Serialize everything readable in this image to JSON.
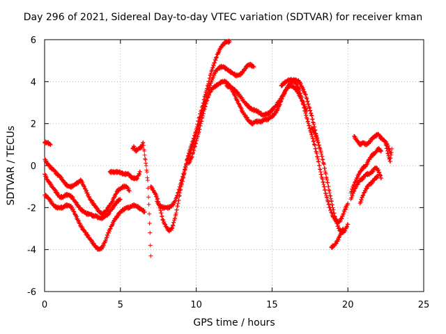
{
  "chart_data": {
    "type": "scatter",
    "title": "Day 296 of 2021, Sidereal Day-to-day VTEC variation (SDTVAR) for receiver kman",
    "xlabel": "GPS time / hours",
    "ylabel": "SDTVAR / TECUs",
    "xlim": [
      0,
      25
    ],
    "ylim": [
      -6,
      6
    ],
    "xticks": [
      0,
      5,
      10,
      15,
      20,
      25
    ],
    "yticks": [
      -6,
      -4,
      -2,
      0,
      2,
      4,
      6
    ],
    "grid": true,
    "marker": "+",
    "color": "#ff0000",
    "series": [
      {
        "x": [
          0.0,
          0.2,
          0.4,
          0.6,
          0.8,
          1.0,
          1.2,
          1.4,
          1.6,
          1.8,
          2.0,
          2.2,
          2.4,
          2.6,
          2.8,
          3.0,
          3.2,
          3.4,
          3.6,
          3.8,
          4.0,
          4.2,
          4.4,
          4.6,
          4.8,
          5.0,
          5.2,
          5.4,
          5.6,
          5.8,
          6.0,
          6.2,
          6.4,
          6.6
        ],
        "y": [
          -1.4,
          -1.5,
          -1.7,
          -1.9,
          -2.0,
          -2.0,
          -2.0,
          -1.9,
          -1.9,
          -2.0,
          -2.3,
          -2.6,
          -2.9,
          -3.1,
          -3.3,
          -3.5,
          -3.7,
          -3.9,
          -4.0,
          -3.9,
          -3.6,
          -3.2,
          -2.9,
          -2.6,
          -2.4,
          -2.2,
          -2.1,
          -2.0,
          -2.0,
          -1.9,
          -1.9,
          -2.0,
          -2.1,
          -2.2
        ]
      },
      {
        "x": [
          0.0,
          0.2,
          0.4,
          0.6,
          0.8,
          1.0,
          1.2,
          1.4,
          1.6,
          1.8,
          2.0,
          2.2,
          2.4,
          2.6,
          2.8,
          3.0,
          3.2,
          3.4,
          3.6,
          3.8,
          4.0,
          4.2,
          4.4,
          4.6,
          4.8,
          5.0
        ],
        "y": [
          -0.4,
          -0.7,
          -0.9,
          -1.1,
          -1.3,
          -1.5,
          -1.5,
          -1.4,
          -1.4,
          -1.5,
          -1.7,
          -1.9,
          -2.1,
          -2.2,
          -2.3,
          -2.3,
          -2.4,
          -2.4,
          -2.5,
          -2.5,
          -2.4,
          -2.3,
          -2.1,
          -1.9,
          -1.7,
          -1.6
        ]
      },
      {
        "x": [
          0.0,
          0.2,
          0.4,
          0.6,
          0.8,
          1.0,
          1.2,
          1.4,
          1.6,
          1.8,
          2.0,
          2.2,
          2.4,
          2.6,
          2.8,
          3.0,
          3.2,
          3.4,
          3.6,
          3.8,
          4.0,
          4.2,
          4.4,
          4.6,
          4.8,
          5.0,
          5.2,
          5.4,
          5.6
        ],
        "y": [
          0.3,
          0.1,
          -0.1,
          -0.2,
          -0.4,
          -0.5,
          -0.7,
          -0.9,
          -1.0,
          -1.0,
          -0.9,
          -0.8,
          -0.7,
          -1.0,
          -1.3,
          -1.6,
          -1.8,
          -2.0,
          -2.2,
          -2.3,
          -2.2,
          -2.0,
          -1.8,
          -1.5,
          -1.2,
          -1.1,
          -1.0,
          -1.0,
          -1.2
        ]
      },
      {
        "x": [
          0.0,
          0.1,
          0.2,
          0.3,
          0.4
        ],
        "y": [
          1.1,
          1.1,
          1.1,
          1.05,
          1.0
        ]
      },
      {
        "x": [
          4.3,
          4.6,
          4.9,
          5.2,
          5.5,
          5.8,
          6.1,
          6.3
        ],
        "y": [
          -0.3,
          -0.3,
          -0.3,
          -0.4,
          -0.4,
          -0.6,
          -0.6,
          -0.3
        ]
      },
      {
        "x": [
          5.8,
          5.9,
          6.0,
          6.2,
          6.4,
          6.5,
          6.6,
          6.7,
          6.8,
          6.85,
          6.9,
          6.95,
          7.0
        ],
        "y": [
          0.8,
          0.9,
          0.7,
          0.8,
          0.9,
          1.1,
          0.5,
          0.0,
          -0.7,
          -1.5,
          -2.3,
          -3.2,
          -4.3
        ]
      },
      {
        "x": [
          7.0,
          7.2,
          7.4,
          7.6,
          7.8,
          8.0,
          8.2,
          8.4,
          8.6,
          8.8,
          9.0,
          9.2,
          9.4,
          9.6,
          9.8,
          10.0,
          10.2,
          10.4,
          10.6,
          10.8,
          11.0,
          11.2,
          11.4,
          11.6,
          11.8,
          12.0,
          12.2
        ],
        "y": [
          -1.0,
          -1.2,
          -1.5,
          -2.0,
          -2.6,
          -2.9,
          -3.1,
          -3.0,
          -2.5,
          -1.8,
          -1.0,
          -0.4,
          0.3,
          0.8,
          1.2,
          1.7,
          2.3,
          2.8,
          3.4,
          3.9,
          4.5,
          4.9,
          5.3,
          5.6,
          5.8,
          5.9,
          5.9
        ]
      },
      {
        "x": [
          7.4,
          7.6,
          7.8,
          8.0,
          8.2,
          8.4,
          8.6,
          8.8,
          9.0,
          9.2,
          9.4,
          9.6,
          9.8,
          10.0,
          10.2,
          10.4,
          10.6,
          10.8,
          11.0,
          11.2,
          11.4,
          11.6,
          11.8,
          12.0,
          12.2,
          12.4,
          12.6,
          12.8,
          13.0,
          13.2,
          13.4,
          13.6,
          13.8
        ],
        "y": [
          -1.7,
          -1.9,
          -2.0,
          -2.0,
          -2.0,
          -1.9,
          -1.7,
          -1.3,
          -0.8,
          -0.3,
          0.2,
          0.6,
          1.0,
          1.5,
          2.0,
          2.6,
          3.1,
          3.6,
          4.0,
          4.4,
          4.6,
          4.7,
          4.7,
          4.6,
          4.5,
          4.4,
          4.3,
          4.3,
          4.4,
          4.6,
          4.8,
          4.8,
          4.7
        ]
      },
      {
        "x": [
          9.5,
          9.7,
          9.9,
          10.1,
          10.3,
          10.5,
          10.7,
          10.9,
          11.1,
          11.3,
          11.5,
          11.7,
          11.9,
          12.1,
          12.3,
          12.5,
          12.7,
          12.9,
          13.1,
          13.3,
          13.5,
          13.7,
          13.9,
          14.1,
          14.3,
          14.5,
          14.7,
          14.9,
          15.1,
          15.3,
          15.5,
          15.7,
          15.9,
          16.1,
          16.3,
          16.5,
          16.7,
          16.9,
          17.1,
          17.3
        ],
        "y": [
          0.1,
          0.4,
          0.9,
          1.4,
          2.0,
          2.6,
          3.1,
          3.5,
          3.7,
          3.8,
          3.9,
          4.0,
          4.0,
          3.9,
          3.7,
          3.4,
          3.1,
          2.8,
          2.5,
          2.3,
          2.1,
          2.0,
          2.1,
          2.1,
          2.1,
          2.2,
          2.2,
          2.3,
          2.4,
          2.6,
          2.9,
          3.3,
          3.6,
          3.8,
          3.8,
          3.7,
          3.5,
          3.2,
          2.9,
          2.6
        ]
      },
      {
        "x": [
          12.0,
          12.4,
          12.8,
          13.2,
          13.6,
          14.0,
          14.4,
          14.8,
          15.2,
          15.6,
          16.0,
          16.4,
          16.8,
          17.2,
          17.6,
          18.0
        ],
        "y": [
          3.8,
          3.7,
          3.4,
          3.0,
          2.7,
          2.6,
          2.4,
          2.5,
          2.8,
          3.2,
          3.7,
          4.1,
          4.0,
          3.4,
          2.4,
          1.2
        ]
      },
      {
        "x": [
          15.6,
          15.9,
          16.2,
          16.5,
          16.8,
          17.0,
          17.2,
          17.4,
          17.6,
          17.8,
          18.0,
          18.2,
          18.4,
          18.6,
          18.8,
          19.0,
          19.2,
          19.4,
          19.6,
          19.8,
          20.0
        ],
        "y": [
          3.8,
          4.0,
          4.1,
          4.0,
          3.6,
          3.1,
          2.5,
          2.0,
          1.5,
          1.0,
          0.4,
          -0.3,
          -0.9,
          -1.5,
          -2.0,
          -2.4,
          -2.6,
          -2.7,
          -2.5,
          -2.1,
          -1.8
        ]
      },
      {
        "x": [
          17.6,
          17.8,
          18.0,
          18.2,
          18.4,
          18.6,
          18.8,
          19.0,
          19.2,
          19.4,
          19.6,
          19.8,
          20.0
        ],
        "y": [
          1.8,
          1.6,
          1.2,
          0.7,
          0.1,
          -0.6,
          -1.3,
          -2.0,
          -2.6,
          -3.0,
          -3.2,
          -3.1,
          -2.8
        ]
      },
      {
        "x": [
          18.9,
          19.1,
          19.3,
          19.5,
          19.7
        ],
        "y": [
          -3.9,
          -3.8,
          -3.6,
          -3.3,
          -3.0
        ]
      },
      {
        "x": [
          20.4,
          20.6,
          20.8,
          21.0,
          21.2,
          21.4,
          21.6,
          21.8,
          22.0,
          22.2,
          22.4,
          22.6,
          22.8
        ],
        "y": [
          1.4,
          1.2,
          1.0,
          1.1,
          1.0,
          1.1,
          1.3,
          1.4,
          1.5,
          1.3,
          1.2,
          1.0,
          0.6
        ]
      },
      {
        "x": [
          20.2,
          20.4,
          20.6,
          20.8,
          21.0,
          21.2,
          21.4,
          21.6,
          21.8,
          22.0,
          22.2
        ],
        "y": [
          -1.3,
          -0.9,
          -0.6,
          -0.3,
          -0.1,
          0.0,
          0.3,
          0.5,
          0.6,
          0.8,
          0.7
        ]
      },
      {
        "x": [
          20.2,
          20.4,
          20.6,
          20.8,
          21.0,
          21.2,
          21.4,
          21.6,
          21.8,
          22.0,
          22.2
        ],
        "y": [
          -1.6,
          -1.2,
          -0.9,
          -0.7,
          -0.6,
          -0.4,
          -0.4,
          -0.3,
          -0.1,
          -0.2,
          -0.6
        ]
      },
      {
        "x": [
          20.8,
          21.0,
          21.2,
          21.4,
          21.6,
          21.8,
          22.0
        ],
        "y": [
          -1.8,
          -1.4,
          -1.1,
          -0.9,
          -0.8,
          -0.6,
          -0.5
        ]
      },
      {
        "x": [
          22.5,
          22.6,
          22.7,
          22.8,
          22.9
        ],
        "y": [
          1.0,
          0.7,
          0.4,
          0.2,
          0.8
        ]
      }
    ]
  }
}
